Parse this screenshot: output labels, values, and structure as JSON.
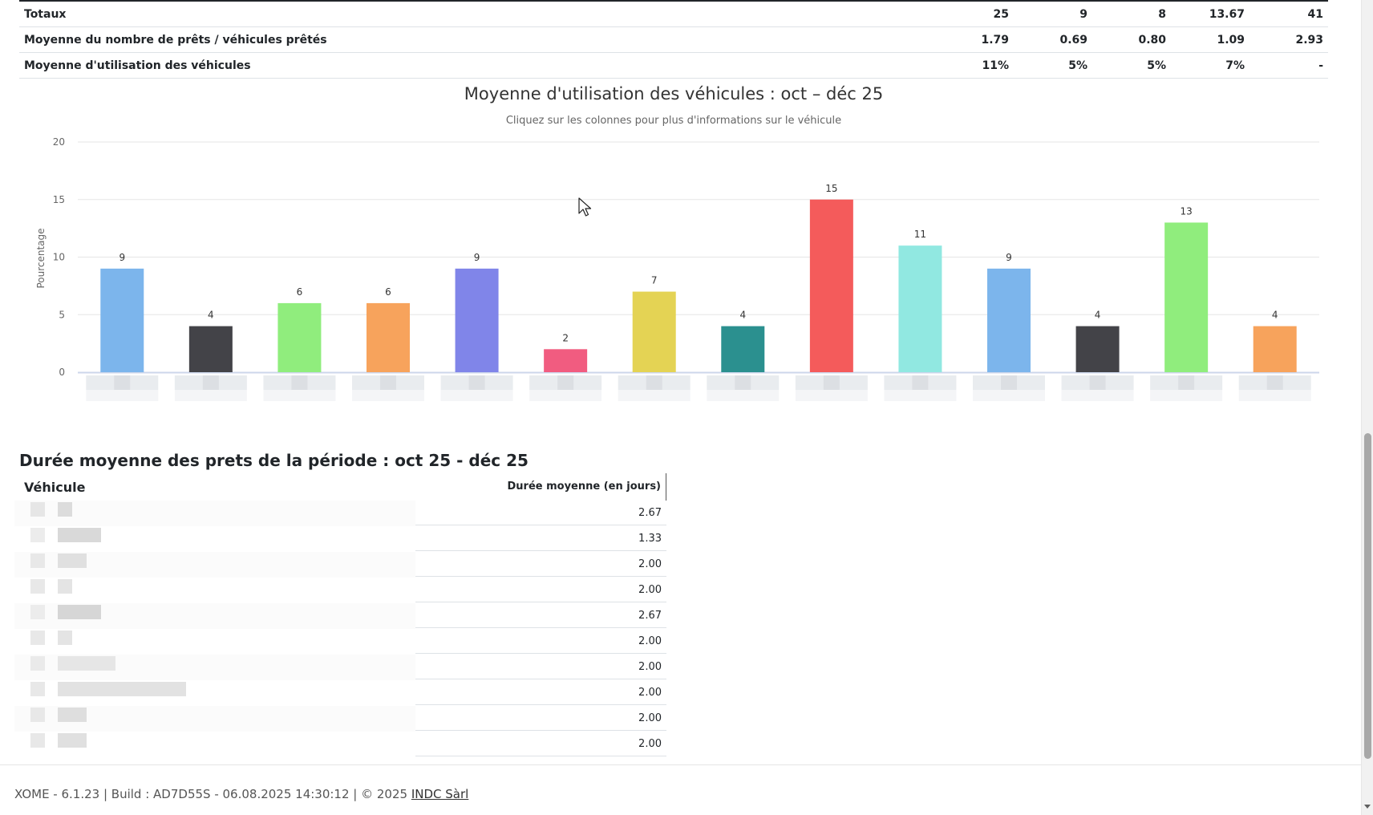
{
  "summary_table": {
    "rows": [
      {
        "label": "Totaux",
        "values": [
          "25",
          "9",
          "8",
          "13.67",
          "41"
        ]
      },
      {
        "label": "Moyenne du nombre de prêts / véhicules prêtés",
        "values": [
          "1.79",
          "0.69",
          "0.80",
          "1.09",
          "2.93"
        ]
      },
      {
        "label": "Moyenne d'utilisation des véhicules",
        "values": [
          "11%",
          "5%",
          "5%",
          "7%",
          "-"
        ]
      }
    ]
  },
  "chart_data": {
    "type": "bar",
    "title": "Moyenne d'utilisation des véhicules : oct – déc 25",
    "subtitle": "Cliquez sur les colonnes pour plus d'informations sur le véhicule",
    "ylabel": "Pourcentage",
    "xlabel": "",
    "ylim": [
      0,
      20
    ],
    "yticks": [
      "0",
      "5",
      "10",
      "15",
      "20"
    ],
    "grid": true,
    "values": [
      9,
      4,
      6,
      6,
      9,
      2,
      7,
      4,
      15,
      11,
      9,
      4,
      13,
      4
    ],
    "colors": [
      "#7cb5ec",
      "#434348",
      "#90ed7d",
      "#f7a35c",
      "#8085e9",
      "#f15c80",
      "#e4d354",
      "#2b908f",
      "#f45b5b",
      "#91e8e1",
      "#7cb5ec",
      "#434348",
      "#90ed7d",
      "#f7a35c"
    ],
    "data_labels": [
      "9",
      "4",
      "6",
      "6",
      "9",
      "2",
      "7",
      "4",
      "15",
      "11",
      "9",
      "4",
      "13",
      "4"
    ]
  },
  "duration": {
    "title": "Durée moyenne des prets de la période : oct 25 - déc 25",
    "col_vehicle": "Véhicule",
    "col_duration": "Durée moyenne (en jours)",
    "values": [
      "2.67",
      "1.33",
      "2.00",
      "2.00",
      "2.67",
      "2.00",
      "2.00",
      "2.00",
      "2.00",
      "2.00"
    ]
  },
  "footer": {
    "text": "XOME - 6.1.23 | Build : AD7D55S - 06.08.2025 14:30:12 | © 2025",
    "link": "INDC Sàrl"
  }
}
